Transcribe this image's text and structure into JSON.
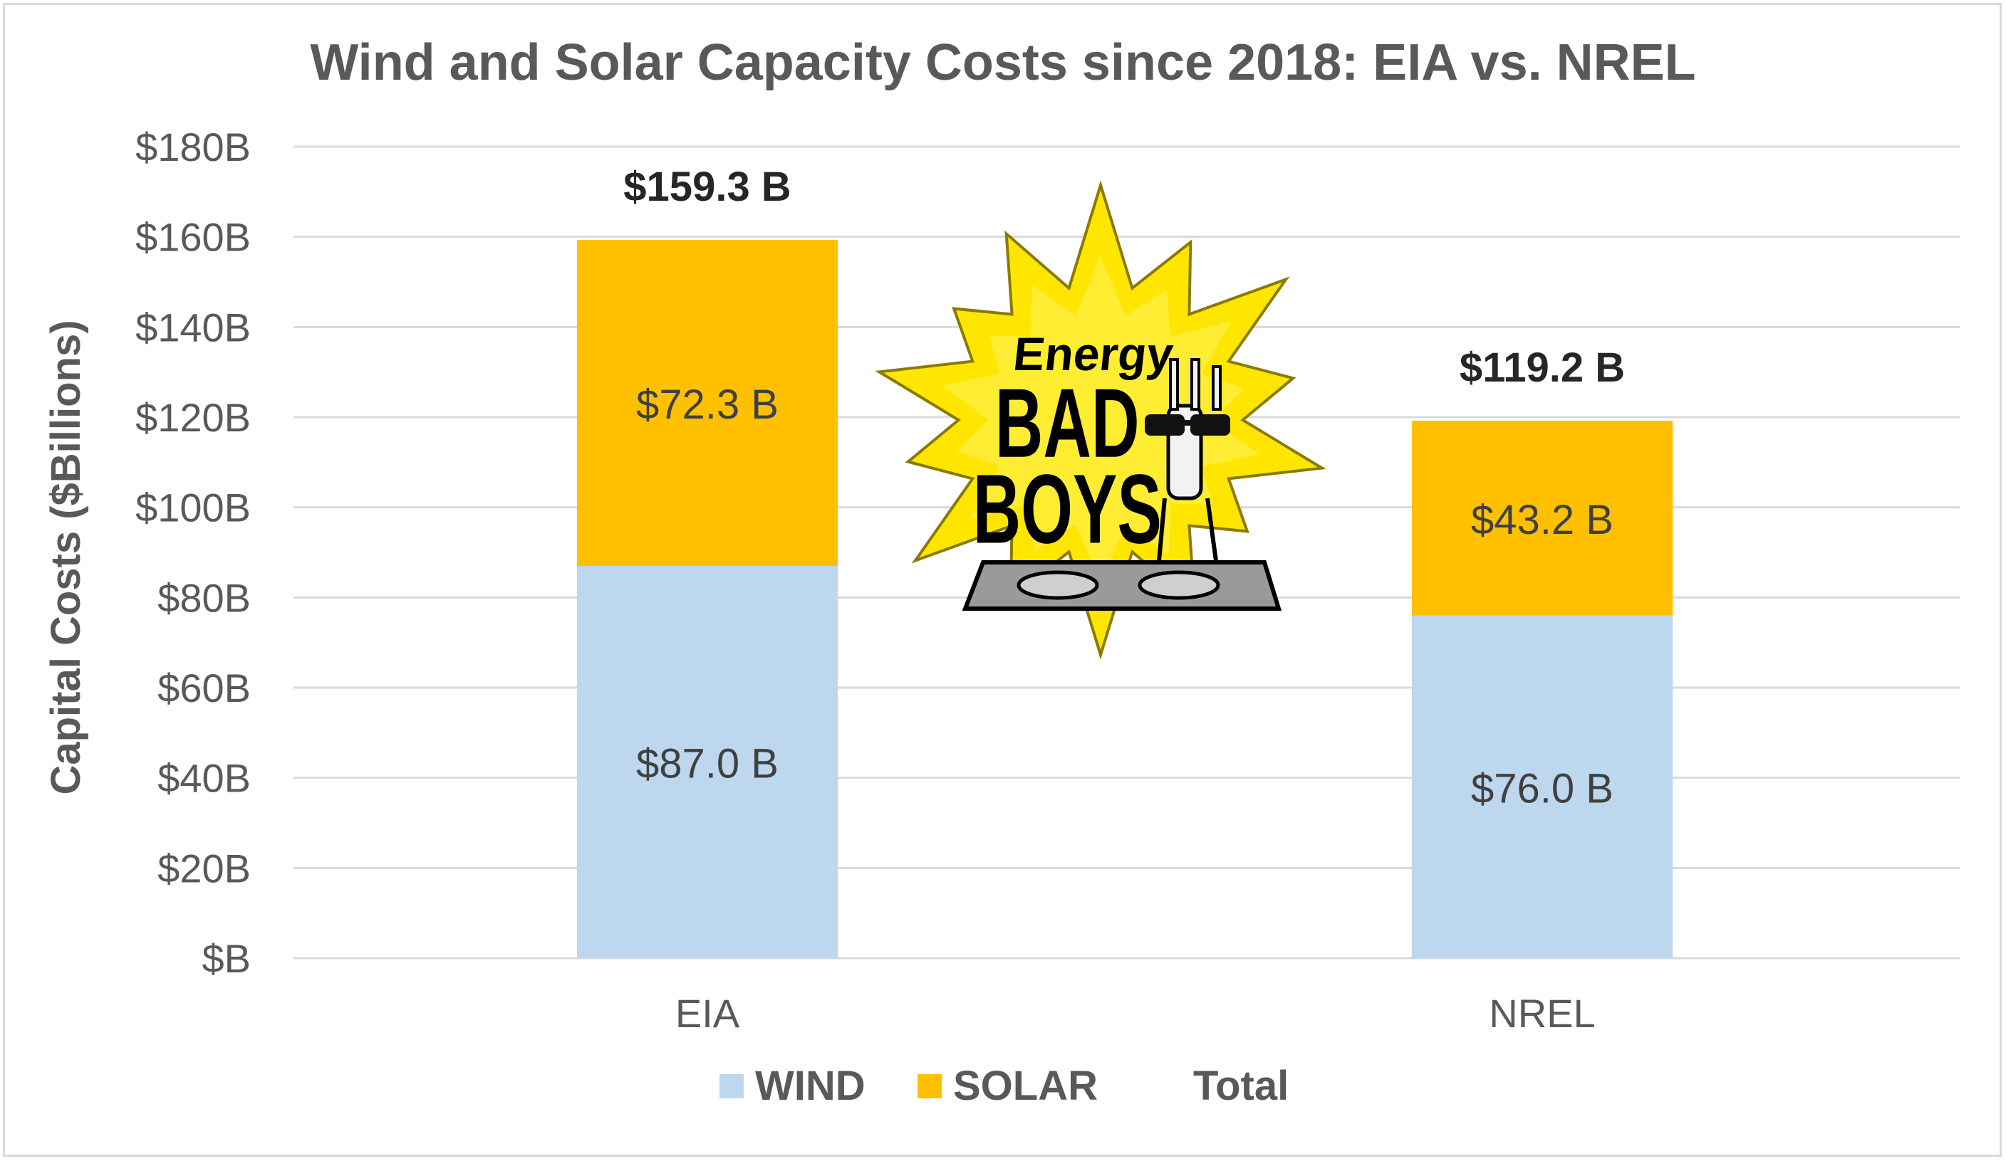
{
  "chart_data": {
    "type": "bar",
    "stacked": true,
    "title": "Wind and Solar Capacity Costs since 2018: EIA vs. NREL",
    "ylabel": "Capital Costs ($Billions)",
    "xlabel": "",
    "categories": [
      "EIA",
      "NREL"
    ],
    "ylim": [
      0,
      180
    ],
    "yticks": [
      0,
      20,
      40,
      60,
      80,
      100,
      120,
      140,
      160,
      180
    ],
    "ytick_labels": [
      "$B",
      "$20B",
      "$40B",
      "$60B",
      "$80B",
      "$100B",
      "$120B",
      "$140B",
      "$160B",
      "$180B"
    ],
    "grid": true,
    "legend_position": "bottom",
    "series": [
      {
        "name": "WIND",
        "color": "#bdd7ee",
        "values": [
          87.0,
          76.0
        ],
        "labels": [
          "$87.0 B",
          "$76.0 B"
        ]
      },
      {
        "name": "SOLAR",
        "color": "#ffc000",
        "values": [
          72.3,
          43.2
        ],
        "labels": [
          "$72.3 B",
          "$43.2 B"
        ]
      }
    ],
    "totals": {
      "name": "Total",
      "values": [
        159.3,
        119.2
      ],
      "labels": [
        "$159.3 B",
        "$119.2 B"
      ]
    }
  },
  "logo": {
    "name": "energy-bad-boys-logo",
    "text_top": "Energy",
    "text_mid": "BAD",
    "text_bottom": "BOYS"
  }
}
